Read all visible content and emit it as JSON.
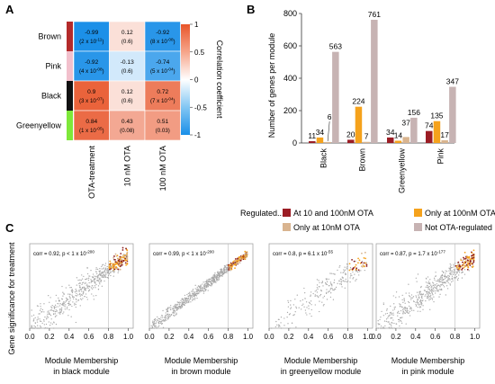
{
  "panel_labels": {
    "a": "A",
    "b": "B",
    "c": "C"
  },
  "colors": {
    "module_strips": [
      "#b42b2b",
      "#f2c0cc",
      "#111111",
      "#7ee83a"
    ],
    "bar_series": [
      "#9b1c24",
      "#f5a21c",
      "#d9b48f",
      "#c7b3b3"
    ],
    "scatter_gray": "#a8a8a8",
    "scatter_dark": "#8b1a1a",
    "scatter_orange": "#f5a21c",
    "scatter_tan": "#d8b48e"
  },
  "heatmap": {
    "type": "heatmap",
    "rows": [
      "Brown",
      "Pink",
      "Black",
      "Greenyellow"
    ],
    "columns": [
      "OTA-treatment",
      "10 nM OTA",
      "100 nM OTA"
    ],
    "values": [
      [
        -0.99,
        0.12,
        -0.92
      ],
      [
        -0.92,
        -0.13,
        -0.74
      ],
      [
        0.9,
        0.12,
        0.72
      ],
      [
        0.84,
        0.43,
        0.51
      ]
    ],
    "cell_text": [
      [
        {
          "main": "-0.99",
          "p": "(2 x 10",
          "exp": "-11",
          "close": ")"
        },
        {
          "main": "0.12",
          "p": "(0.6)",
          "exp": "",
          "close": ""
        },
        {
          "main": "-0.92",
          "p": "(8 x 10",
          "exp": "-08",
          "close": ")"
        }
      ],
      [
        {
          "main": "-0.92",
          "p": "(4 x 10",
          "exp": "-08",
          "close": ")"
        },
        {
          "main": "-0.13",
          "p": "(0.6)",
          "exp": "",
          "close": ""
        },
        {
          "main": "-0.74",
          "p": "(5 x 10",
          "exp": "-04",
          "close": ")"
        }
      ],
      [
        {
          "main": "0.9",
          "p": "(3 x 10",
          "exp": "-07",
          "close": ")"
        },
        {
          "main": "0.12",
          "p": "(0.6)",
          "exp": "",
          "close": ""
        },
        {
          "main": "0.72",
          "p": "(7 x 10",
          "exp": "-04",
          "close": ")"
        }
      ],
      [
        {
          "main": "0.84",
          "p": "(1 x 10",
          "exp": "-05",
          "close": ")"
        },
        {
          "main": "0.43",
          "p": "(0.08)",
          "exp": "",
          "close": ""
        },
        {
          "main": "0.51",
          "p": "(0.03)",
          "exp": "",
          "close": ""
        }
      ]
    ],
    "colorbar": {
      "label": "Correlation coefficient",
      "ticks": [
        "1",
        "0.5",
        "0",
        "-0.5",
        "-1"
      ],
      "tick_values": [
        1,
        0.5,
        0,
        -0.5,
        -1
      ],
      "range": [
        -1,
        1
      ]
    }
  },
  "bars": {
    "type": "bar",
    "ylabel": "Number of genes per module",
    "ylim": [
      0,
      800
    ],
    "yticks": [
      "0",
      "200",
      "400",
      "600",
      "800"
    ],
    "ytick_values": [
      0,
      200,
      400,
      600,
      800
    ],
    "categories": [
      "Black",
      "Brown",
      "Greenyellow",
      "Pink"
    ],
    "series": [
      {
        "name": "At 10 and 100nM OTA",
        "values": [
          11,
          20,
          34,
          74
        ]
      },
      {
        "name": "Only at 100nM OTA",
        "values": [
          34,
          224,
          14,
          135
        ]
      },
      {
        "name": "Only at 10nM OTA",
        "values": [
          6,
          7,
          37,
          17
        ]
      },
      {
        "name": "Not OTA-regulated",
        "values": [
          563,
          761,
          156,
          347
        ]
      }
    ],
    "value_labels": [
      [
        "11",
        "34",
        "6",
        "563"
      ],
      [
        "20",
        "224",
        "7",
        "761"
      ],
      [
        "34",
        "14",
        "37",
        "156"
      ],
      [
        "74",
        "135",
        "17",
        "347"
      ]
    ],
    "legend_title": "Regulated...",
    "legend_placement": "bottom"
  },
  "scatter": {
    "type": "scatter",
    "ylabel": "Gene significance for treatment",
    "xticks": [
      "0.0",
      "0.2",
      "0.4",
      "0.6",
      "0.8",
      "1.0"
    ],
    "xtick_values": [
      0,
      0.2,
      0.4,
      0.6,
      0.8,
      1.0
    ],
    "xlim": [
      0,
      1.05
    ],
    "ylim": [
      0,
      1.05
    ],
    "vline_x": 0.8,
    "panels": [
      {
        "module": "black",
        "corr_text": "corr = 0.92, p < 1 x 10",
        "corr_exp": "-200",
        "xlabel_1": "Module Membership",
        "xlabel_2": "in black module",
        "slope": 0.9,
        "spread": 0.12,
        "n_points": 600
      },
      {
        "module": "brown",
        "corr_text": "corr = 0.99, p < 1 x 10",
        "corr_exp": "-200",
        "xlabel_1": "Module Membership",
        "xlabel_2": "in brown module",
        "slope": 0.93,
        "spread": 0.045,
        "n_points": 760
      },
      {
        "module": "greenyellow",
        "corr_text": "corr = 0.8, p = 6.1 x 10",
        "corr_exp": "-55",
        "xlabel_1": "Module Membership",
        "xlabel_2": "in greenyellow module",
        "slope": 0.85,
        "spread": 0.14,
        "n_points": 240
      },
      {
        "module": "pink",
        "corr_text": "corr = 0.87, p = 1.7 x 10",
        "corr_exp": "-177",
        "xlabel_1": "Module Membership",
        "xlabel_2": "in pink module",
        "slope": 0.88,
        "spread": 0.12,
        "n_points": 570
      }
    ]
  }
}
